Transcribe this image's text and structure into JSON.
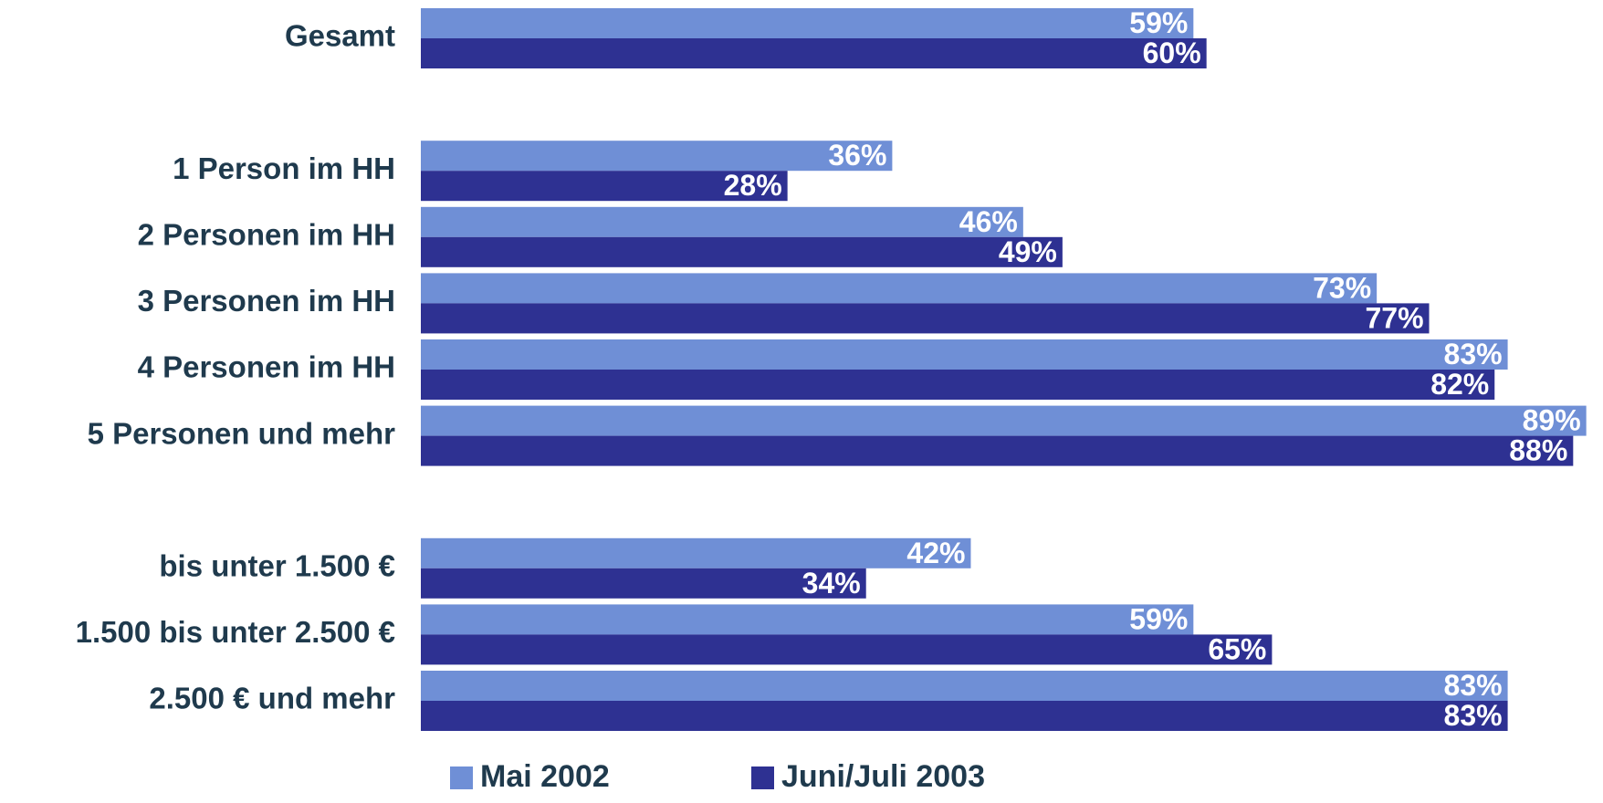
{
  "chart_data": {
    "type": "hbar",
    "categories": [
      "Gesamt",
      "1 Person im HH",
      "2 Personen im HH",
      "3 Personen im HH",
      "4 Personen im HH",
      "5 Personen und mehr",
      "bis unter 1.500 €",
      "1.500 bis unter 2.500 €",
      "2.500 € und mehr"
    ],
    "series": [
      {
        "name": "Mai 2002",
        "color": "#6f8fd6",
        "values": [
          59,
          36,
          46,
          73,
          83,
          89,
          42,
          59,
          83
        ],
        "value_labels": [
          "59%",
          "36%",
          "46%",
          "73%",
          "83%",
          "89%",
          "42%",
          "59%",
          "83%"
        ]
      },
      {
        "name": "Juni/Juli 2003",
        "color": "#2e3192",
        "values": [
          60,
          28,
          49,
          77,
          82,
          88,
          34,
          65,
          83
        ],
        "value_labels": [
          "60%",
          "28%",
          "49%",
          "77%",
          "82%",
          "88%",
          "34%",
          "65%",
          "83%"
        ]
      }
    ],
    "xlim": [
      0,
      90
    ],
    "legend": "bottom"
  }
}
